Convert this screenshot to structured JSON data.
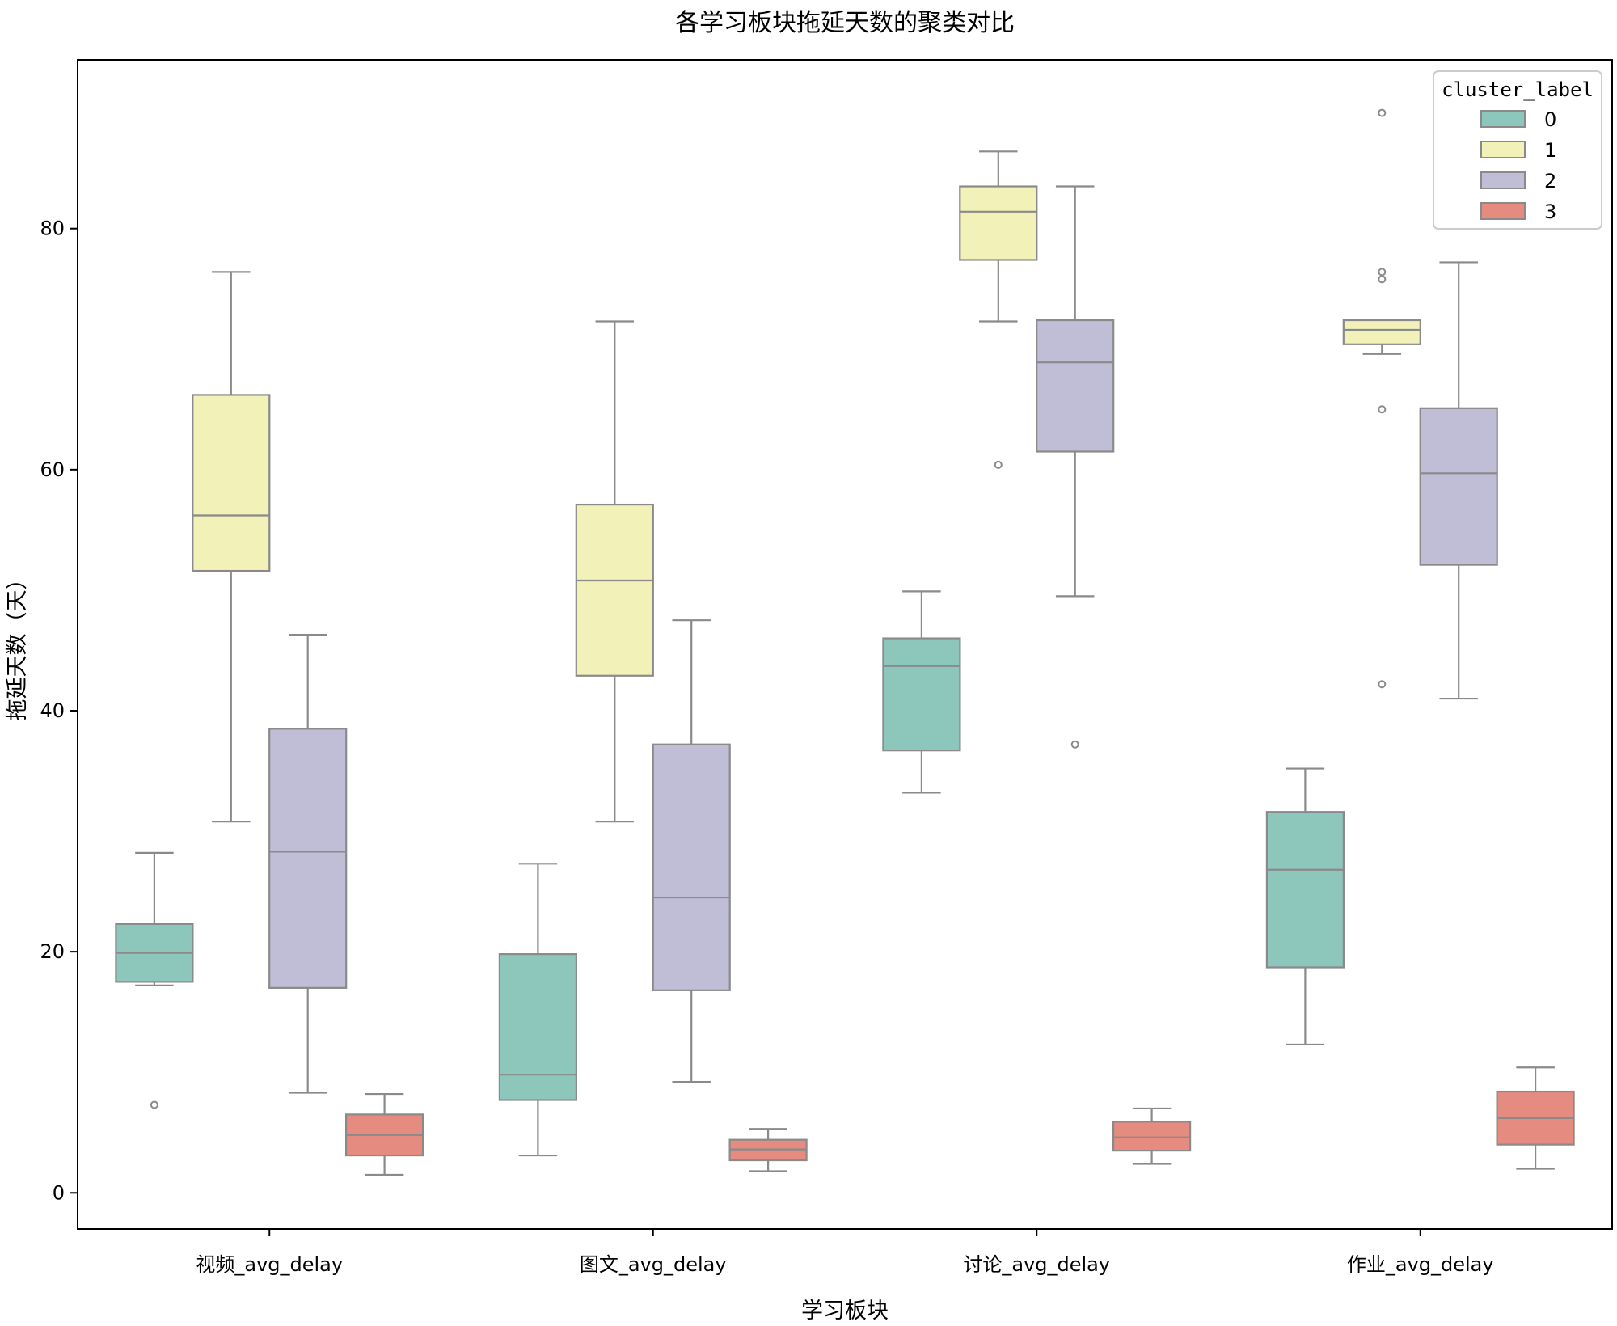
{
  "chart_data": {
    "type": "box",
    "title": "各学习板块拖延天数的聚类对比",
    "xlabel": "学习板块",
    "ylabel": "拖延天数（天）",
    "ylim": [
      -3,
      94
    ],
    "yticks": [
      0,
      20,
      40,
      60,
      80
    ],
    "ytick_labels": [
      "0",
      "20",
      "40",
      "60",
      "80"
    ],
    "categories": [
      "视频_avg_delay",
      "图文_avg_delay",
      "讨论_avg_delay",
      "作业_avg_delay"
    ],
    "legend": {
      "title": "cluster_label",
      "position": "top-right"
    },
    "grid": false,
    "series": [
      {
        "name": "0",
        "color": "#8dc7bb",
        "boxes": [
          {
            "whislo": 17.2,
            "q1": 17.5,
            "med": 19.9,
            "q3": 22.3,
            "whishi": 28.2,
            "fliers": [
              7.3
            ]
          },
          {
            "whislo": 3.1,
            "q1": 7.7,
            "med": 9.8,
            "q3": 19.8,
            "whishi": 27.3,
            "fliers": []
          },
          {
            "whislo": 33.2,
            "q1": 36.7,
            "med": 43.7,
            "q3": 46.0,
            "whishi": 49.9,
            "fliers": []
          },
          {
            "whislo": 12.3,
            "q1": 18.7,
            "med": 26.8,
            "q3": 31.6,
            "whishi": 35.2,
            "fliers": []
          }
        ]
      },
      {
        "name": "1",
        "color": "#f1f1b8",
        "boxes": [
          {
            "whislo": 30.8,
            "q1": 51.6,
            "med": 56.2,
            "q3": 66.2,
            "whishi": 76.4,
            "fliers": []
          },
          {
            "whislo": 30.8,
            "q1": 42.9,
            "med": 50.8,
            "q3": 57.1,
            "whishi": 72.3,
            "fliers": []
          },
          {
            "whislo": 72.3,
            "q1": 77.4,
            "med": 81.4,
            "q3": 83.5,
            "whishi": 86.4,
            "fliers": [
              60.4
            ]
          },
          {
            "whislo": 69.6,
            "q1": 70.4,
            "med": 71.6,
            "q3": 72.4,
            "whishi": 72.4,
            "fliers": [
              42.2,
              65.0,
              75.8,
              76.4,
              89.6
            ]
          }
        ]
      },
      {
        "name": "2",
        "color": "#c0bdd7",
        "boxes": [
          {
            "whislo": 8.3,
            "q1": 17.0,
            "med": 28.3,
            "q3": 38.5,
            "whishi": 46.3,
            "fliers": []
          },
          {
            "whislo": 9.2,
            "q1": 16.8,
            "med": 24.5,
            "q3": 37.2,
            "whishi": 47.5,
            "fliers": []
          },
          {
            "whislo": 49.5,
            "q1": 61.5,
            "med": 68.9,
            "q3": 72.4,
            "whishi": 83.5,
            "fliers": [
              37.2
            ]
          },
          {
            "whislo": 41.0,
            "q1": 52.1,
            "med": 59.7,
            "q3": 65.1,
            "whishi": 77.2,
            "fliers": []
          }
        ]
      },
      {
        "name": "3",
        "color": "#e58b80",
        "boxes": [
          {
            "whislo": 1.5,
            "q1": 3.1,
            "med": 4.8,
            "q3": 6.5,
            "whishi": 8.2,
            "fliers": []
          },
          {
            "whislo": 1.8,
            "q1": 2.7,
            "med": 3.6,
            "q3": 4.4,
            "whishi": 5.3,
            "fliers": []
          },
          {
            "whislo": 2.4,
            "q1": 3.5,
            "med": 4.6,
            "q3": 5.9,
            "whishi": 7.0,
            "fliers": []
          },
          {
            "whislo": 2.0,
            "q1": 4.0,
            "med": 6.2,
            "q3": 8.4,
            "whishi": 10.4,
            "fliers": []
          }
        ]
      }
    ]
  }
}
